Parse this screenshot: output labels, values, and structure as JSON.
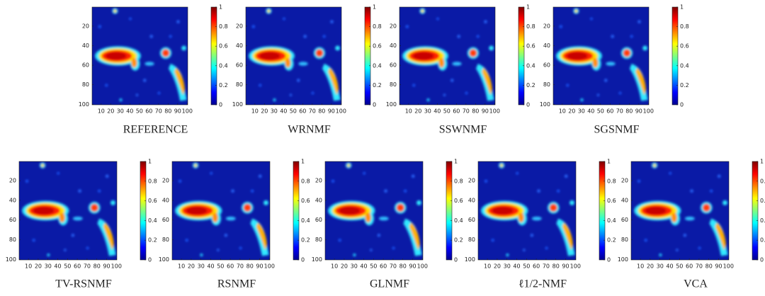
{
  "chart_data": {
    "type": "heatmap-grid",
    "panels": [
      {
        "title": "REFERENCE"
      },
      {
        "title": "WRNMF"
      },
      {
        "title": "SSWNMF"
      },
      {
        "title": "SGSNMF"
      },
      {
        "title": "TV-RSNMF"
      },
      {
        "title": "RSNMF"
      },
      {
        "title": "GLNMF"
      },
      {
        "title": "ℓ1/2-NMF"
      },
      {
        "title": "VCA"
      }
    ],
    "xlim": [
      0.5,
      100.5
    ],
    "ylim": [
      0.5,
      100.5
    ],
    "y_direction": "reverse",
    "xticks": [
      10,
      20,
      30,
      40,
      50,
      60,
      70,
      80,
      90,
      100
    ],
    "yticks": [
      20,
      40,
      60,
      80,
      100
    ],
    "colorbar_lim": [
      0,
      1
    ],
    "colorbar_ticks": [
      0,
      0.2,
      0.4,
      0.6,
      0.8,
      1
    ]
  }
}
